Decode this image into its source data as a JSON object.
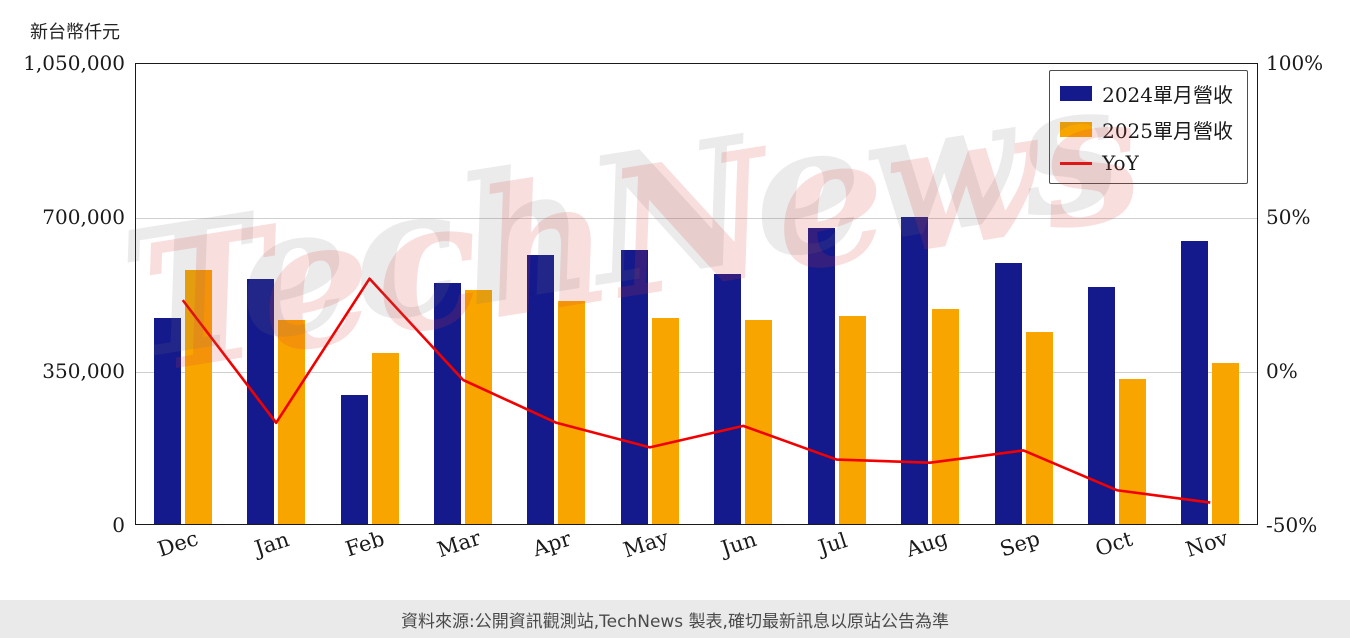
{
  "unit_label": "新台幣仟元",
  "footer_text": "資料來源:公開資訊觀測站,TechNews 製表,確切最新訊息以原站公告為準",
  "watermark_text": "TechNews",
  "legend": {
    "series_2024": "2024單月營收",
    "series_2025": "2025單月營收",
    "yoy": "YoY"
  },
  "chart_data": {
    "type": "bar",
    "title": "",
    "xlabel": "",
    "ylabel_left": "新台幣仟元",
    "categories": [
      "Dec",
      "Jan",
      "Feb",
      "Mar",
      "Apr",
      "May",
      "Jun",
      "Jul",
      "Aug",
      "Sep",
      "Oct",
      "Nov"
    ],
    "series": [
      {
        "name": "2024單月營收",
        "color": "#141a8c",
        "values": [
          470000,
          560000,
          295000,
          550000,
          615000,
          625000,
          570000,
          675000,
          700000,
          595000,
          540000,
          645000
        ]
      },
      {
        "name": "2025單月營收",
        "color": "#f9a500",
        "values": [
          580000,
          465000,
          390000,
          535000,
          510000,
          470000,
          465000,
          475000,
          490000,
          438000,
          330000,
          368000
        ]
      }
    ],
    "line": {
      "name": "YoY",
      "color": "#f20000",
      "unit": "%",
      "values": [
        23,
        -17,
        30,
        -3,
        -17,
        -25,
        -18,
        -29,
        -30,
        -26,
        -39,
        -43
      ]
    },
    "left_axis": {
      "min": 0,
      "max": 1050000,
      "ticks": [
        "1,050,000",
        "700,000",
        "350,000",
        "0"
      ]
    },
    "right_axis": {
      "min": -50,
      "max": 100,
      "ticks": [
        "100%",
        "50%",
        "0%",
        "-50%"
      ]
    },
    "grid": "horizontal",
    "legend_position": "top-right"
  }
}
